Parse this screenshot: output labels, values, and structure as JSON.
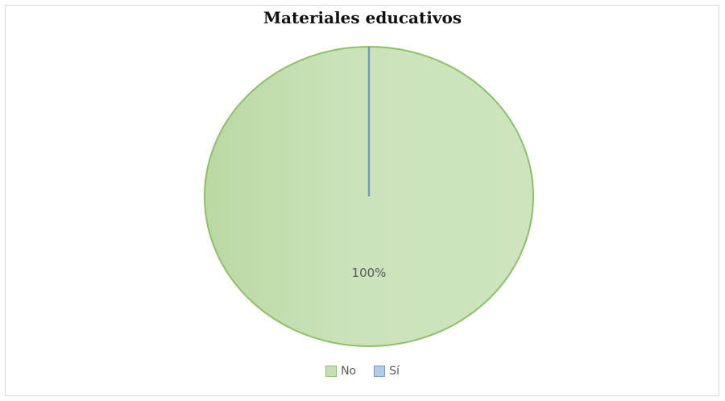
{
  "chart_data": {
    "type": "pie",
    "title": "Materiales educativos",
    "categories": [
      "No",
      "Sí"
    ],
    "values": [
      100,
      0
    ],
    "data_labels": [
      "100%"
    ],
    "colors": [
      "#c5dfb4",
      "#b4cbe6"
    ],
    "border_colors": [
      "#8cc168",
      "#6d9bc5"
    ],
    "legend_position": "bottom"
  }
}
